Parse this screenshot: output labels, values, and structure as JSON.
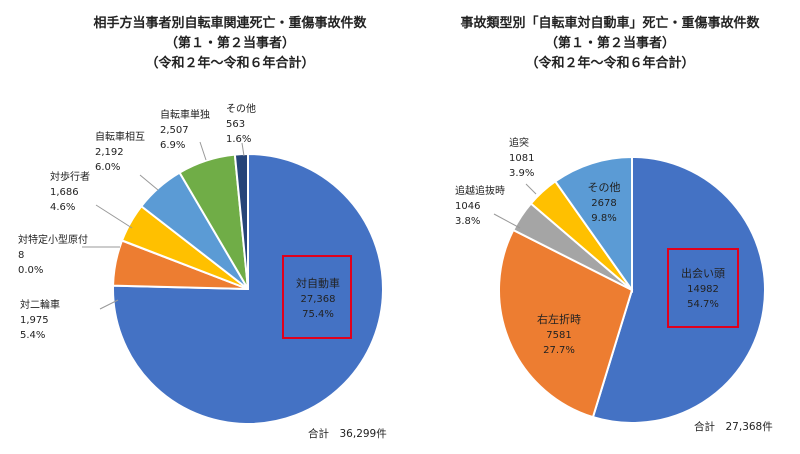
{
  "chart_data": [
    {
      "type": "pie",
      "title_lines": [
        "相手方当事者別自転車関連死亡・重傷事故件数",
        "（第１・第２当事者）",
        "（令和２年〜令和６年合計）"
      ],
      "slices": [
        {
          "label": "対自動車",
          "value": 27368,
          "value_text": "27,368",
          "percent": "75.4%",
          "color": "#4472C4"
        },
        {
          "label": "対二輪車",
          "value": 1975,
          "value_text": "1,975",
          "percent": "5.4%",
          "color": "#ED7D31"
        },
        {
          "label": "対特定小型原付",
          "value": 8,
          "value_text": "8",
          "percent": "0.0%",
          "color": "#A5A5A5"
        },
        {
          "label": "対歩行者",
          "value": 1686,
          "value_text": "1,686",
          "percent": "4.6%",
          "color": "#FFC000"
        },
        {
          "label": "自転車相互",
          "value": 2192,
          "value_text": "2,192",
          "percent": "6.0%",
          "color": "#5B9BD5"
        },
        {
          "label": "自転車単独",
          "value": 2507,
          "value_text": "2,507",
          "percent": "6.9%",
          "color": "#70AD47"
        },
        {
          "label": "その他",
          "value": 563,
          "value_text": "563",
          "percent": "1.6%",
          "color": "#264478"
        }
      ],
      "highlight": "対自動車",
      "total_text": "合計　36,299件"
    },
    {
      "type": "pie",
      "title_lines": [
        "事故類型別「自転車対自動車」死亡・重傷事故件数",
        "（第１・第２当事者）",
        "（令和２年〜令和６年合計）"
      ],
      "slices": [
        {
          "label": "出会い頭",
          "value": 14982,
          "value_text": "14982",
          "percent": "54.7%",
          "color": "#4472C4"
        },
        {
          "label": "右左折時",
          "value": 7581,
          "value_text": "7581",
          "percent": "27.7%",
          "color": "#ED7D31"
        },
        {
          "label": "追越追抜時",
          "value": 1046,
          "value_text": "1046",
          "percent": "3.8%",
          "color": "#A5A5A5"
        },
        {
          "label": "追突",
          "value": 1081,
          "value_text": "1081",
          "percent": "3.9%",
          "color": "#FFC000"
        },
        {
          "label": "その他",
          "value": 2678,
          "value_text": "2678",
          "percent": "9.8%",
          "color": "#5B9BD5"
        }
      ],
      "highlight": "出会い頭",
      "total_text": "合計　27,368件"
    }
  ]
}
